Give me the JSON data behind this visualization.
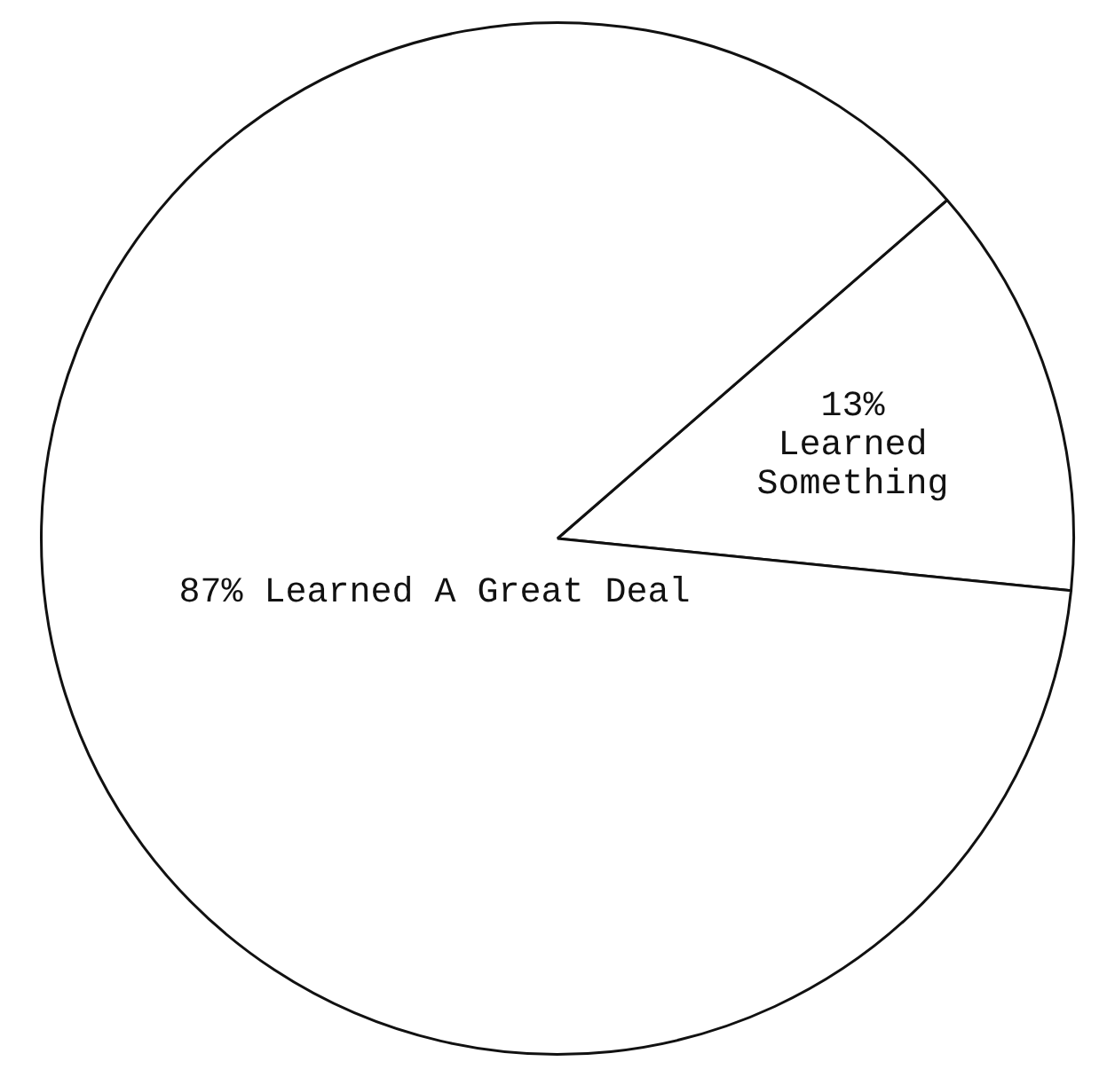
{
  "chart_data": {
    "type": "pie",
    "categories": [
      "Learned Something",
      "Learned A Great Deal"
    ],
    "values": [
      13,
      87
    ],
    "colors": [
      "#ffffff",
      "#ffffff"
    ],
    "value_labels": [
      "13%",
      "87%"
    ]
  }
}
